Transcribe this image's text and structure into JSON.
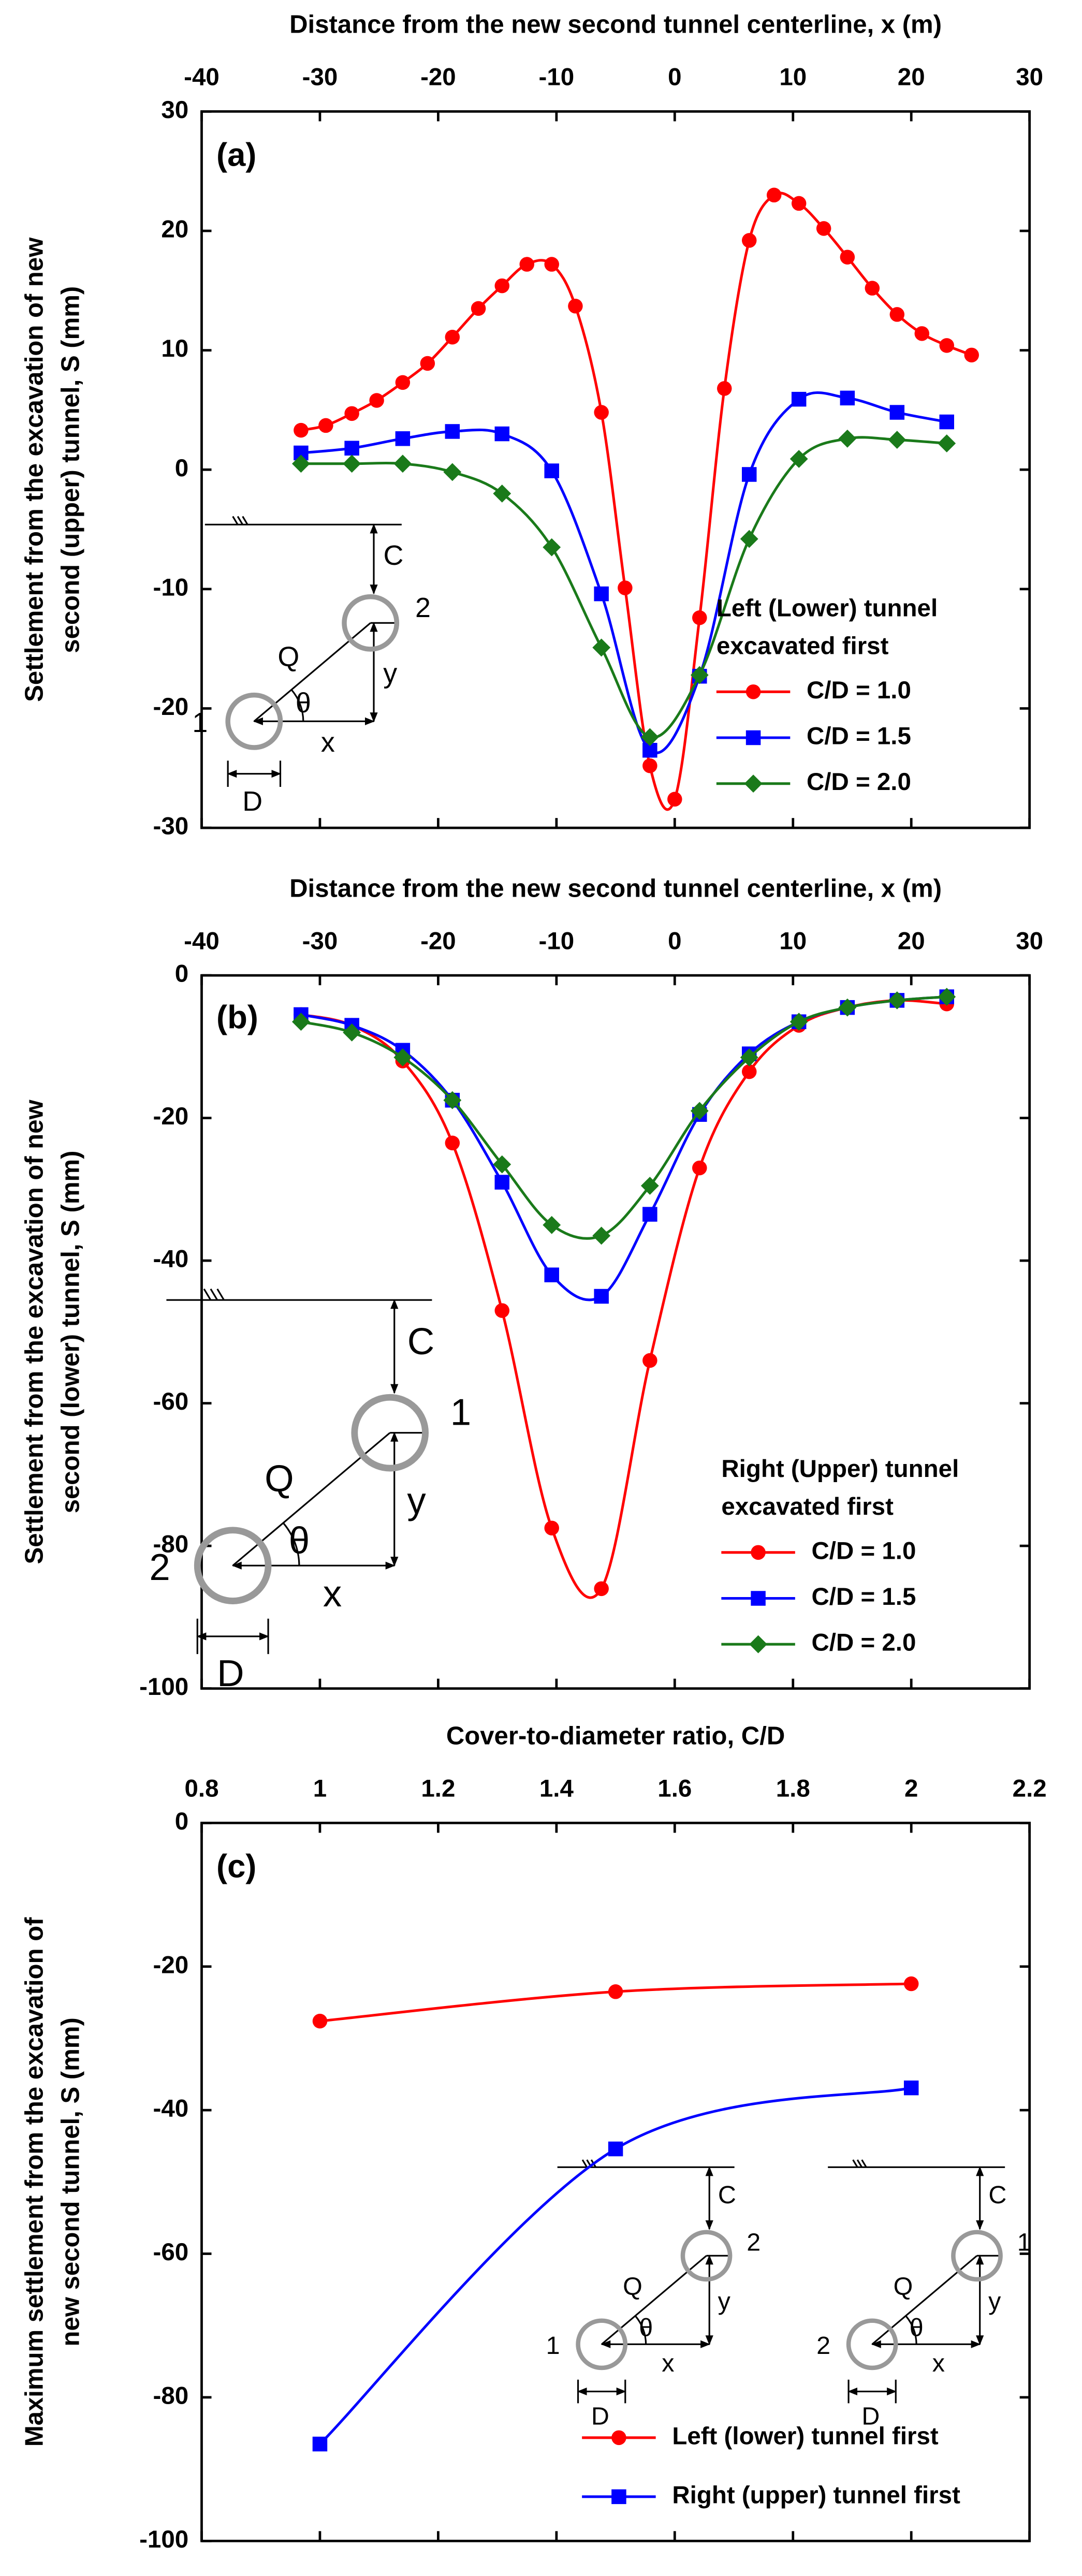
{
  "chart_data": [
    {
      "type": "line",
      "label": "(a)",
      "xlabel": "Distance from the new second tunnel centerline, x (m)",
      "ylabel": [
        "Settlement from the excavation of new",
        "second (upper) tunnel, S (mm)"
      ],
      "xlim": [
        -40,
        30
      ],
      "xticks": [
        -40,
        -30,
        -20,
        -10,
        0,
        10,
        20,
        30
      ],
      "ylim": [
        -30,
        30
      ],
      "yticks": [
        -30,
        -20,
        -10,
        0,
        10,
        20,
        30
      ],
      "legend": "lower right",
      "legend_title": [
        "Left (Lower) tunnel",
        "excavated first"
      ],
      "series": [
        {
          "name": "C/D = 1.0",
          "color": "#ff0000",
          "marker": "circle",
          "x": [
            -31.6,
            -29.5,
            -27.3,
            -25.2,
            -23,
            -20.9,
            -18.8,
            -16.6,
            -14.6,
            -12.5,
            -10.4,
            -8.4,
            -6.2,
            -4.2,
            -2.1,
            0,
            2.1,
            4.2,
            6.3,
            8.4,
            10.5,
            12.6,
            14.6,
            16.7,
            18.8,
            20.9,
            23,
            25.1
          ],
          "values": [
            3.3,
            3.7,
            4.7,
            5.8,
            7.3,
            8.9,
            11.1,
            13.5,
            15.4,
            17.2,
            17.2,
            13.7,
            4.8,
            -9.9,
            -24.8,
            -27.6,
            -12.4,
            6.8,
            19.2,
            23,
            22.3,
            20.2,
            17.8,
            15.2,
            13,
            11.4,
            10.4,
            9.6
          ]
        },
        {
          "name": "C/D = 1.5",
          "color": "#0000ff",
          "marker": "square",
          "x": [
            -31.6,
            -27.3,
            -23,
            -18.8,
            -14.6,
            -10.4,
            -6.2,
            -2.1,
            2.1,
            6.3,
            10.5,
            14.6,
            18.8,
            23
          ],
          "values": [
            1.4,
            1.8,
            2.6,
            3.2,
            3,
            -0.1,
            -10.4,
            -23.5,
            -17.3,
            -0.4,
            5.9,
            6,
            4.8,
            4
          ]
        },
        {
          "name": "C/D = 2.0",
          "color": "#1a7a1a",
          "marker": "diamond",
          "x": [
            -31.6,
            -27.3,
            -23,
            -18.8,
            -14.6,
            -10.4,
            -6.2,
            -2.1,
            2.1,
            6.3,
            10.5,
            14.6,
            18.8,
            23
          ],
          "values": [
            0.5,
            0.5,
            0.5,
            -0.2,
            -2,
            -6.5,
            -14.9,
            -22.4,
            -17.2,
            -5.8,
            0.9,
            2.6,
            2.5,
            2.2
          ]
        }
      ],
      "inset": {
        "C": "C",
        "Q": "Q",
        "theta": "θ",
        "x": "x",
        "y": "y",
        "D": "D",
        "upper": "2",
        "lower": "1"
      }
    },
    {
      "type": "line",
      "label": "(b)",
      "xlabel": "Distance from the new second tunnel centerline, x (m)",
      "ylabel": [
        "Settlement from the excavation of new",
        "second (lower) tunnel, S (mm)"
      ],
      "xlim": [
        -40,
        30
      ],
      "xticks": [
        -40,
        -30,
        -20,
        -10,
        0,
        10,
        20,
        30
      ],
      "ylim": [
        -100,
        0
      ],
      "yticks": [
        -100,
        -80,
        -60,
        -40,
        -20,
        0
      ],
      "legend": "lower right",
      "legend_title": [
        "Right (Upper) tunnel",
        "excavated first"
      ],
      "series": [
        {
          "name": "C/D = 1.0",
          "color": "#ff0000",
          "marker": "circle",
          "x": [
            -31.6,
            -27.3,
            -23,
            -18.8,
            -14.6,
            -10.4,
            -6.2,
            -2.1,
            2.1,
            6.3,
            10.5,
            14.6,
            18.8,
            23
          ],
          "values": [
            -5.5,
            -7,
            -12,
            -23.5,
            -47,
            -77.5,
            -86,
            -54,
            -27,
            -13.5,
            -7,
            -4.5,
            -3.5,
            -4
          ]
        },
        {
          "name": "C/D = 1.5",
          "color": "#0000ff",
          "marker": "square",
          "x": [
            -31.6,
            -27.3,
            -23,
            -18.8,
            -14.6,
            -10.4,
            -6.2,
            -2.1,
            2.1,
            6.3,
            10.5,
            14.6,
            18.8,
            23
          ],
          "values": [
            -5.5,
            -7,
            -10.5,
            -17.5,
            -29,
            -42,
            -45,
            -33.5,
            -19.5,
            -11,
            -6.5,
            -4.5,
            -3.5,
            -3
          ]
        },
        {
          "name": "C/D = 2.0",
          "color": "#1a7a1a",
          "marker": "diamond",
          "x": [
            -31.6,
            -27.3,
            -23,
            -18.8,
            -14.6,
            -10.4,
            -6.2,
            -2.1,
            2.1,
            6.3,
            10.5,
            14.6,
            18.8,
            23
          ],
          "values": [
            -6.5,
            -8,
            -11.5,
            -17.5,
            -26.5,
            -35,
            -36.5,
            -29.5,
            -19,
            -11.5,
            -6.5,
            -4.5,
            -3.5,
            -3
          ]
        }
      ],
      "inset": {
        "C": "C",
        "Q": "Q",
        "theta": "θ",
        "x": "x",
        "y": "y",
        "D": "D",
        "upper": "1",
        "lower": "2"
      }
    },
    {
      "type": "line",
      "label": "(c)",
      "xlabel": "Cover-to-diameter ratio, C/D",
      "ylabel": [
        "Maximum settlement from the excavation of",
        "new second tunnel, S (mm)"
      ],
      "xlim": [
        0.8,
        2.2
      ],
      "xticks": [
        0.8,
        1,
        1.2,
        1.4,
        1.6,
        1.8,
        2,
        2.2
      ],
      "ylim": [
        -100,
        0
      ],
      "yticks": [
        -100,
        -80,
        -60,
        -40,
        -20,
        0
      ],
      "legend": "lower right",
      "series": [
        {
          "name": "Left (lower) tunnel first",
          "color": "#ff0000",
          "marker": "circle",
          "x": [
            1,
            1.5,
            2
          ],
          "values": [
            -27.6,
            -23.5,
            -22.4
          ]
        },
        {
          "name": "Right (upper) tunnel first",
          "color": "#0000ff",
          "marker": "square",
          "x": [
            1,
            1.5,
            2
          ],
          "values": [
            -86.5,
            -45.4,
            -36.9
          ]
        }
      ],
      "insets": [
        {
          "C": "C",
          "Q": "Q",
          "theta": "θ",
          "x": "x",
          "y": "y",
          "D": "D",
          "upper": "2",
          "lower": "1"
        },
        {
          "C": "C",
          "Q": "Q",
          "theta": "θ",
          "x": "x",
          "y": "y",
          "D": "D",
          "upper": "1",
          "lower": "2"
        }
      ]
    }
  ]
}
